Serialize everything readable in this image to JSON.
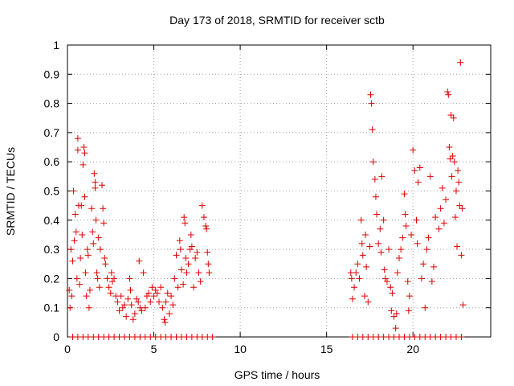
{
  "chart_data": {
    "type": "scatter",
    "title": "Day 173 of 2018, SRMTID for receiver sctb",
    "xlabel": "GPS time / hours",
    "ylabel": "SRMTID / TECUs",
    "xlim": [
      0,
      24.5
    ],
    "ylim": [
      0,
      1
    ],
    "xticks": [
      0,
      5,
      10,
      15,
      20
    ],
    "xtick_labels": [
      "0",
      "5",
      "10",
      "15",
      "20"
    ],
    "yticks": [
      0,
      0.1,
      0.2,
      0.3,
      0.4,
      0.5,
      0.6,
      0.7,
      0.8,
      0.9,
      1
    ],
    "ytick_labels": [
      "0",
      "0.1",
      "0.2",
      "0.3",
      "0.4",
      "0.5",
      "0.6",
      "0.7",
      "0.8",
      "0.9",
      "1"
    ],
    "grid": true,
    "marker": "+",
    "color": "#dd0000",
    "series": [
      {
        "name": "SRMTID",
        "points": [
          [
            0.1,
            0.16
          ],
          [
            0.15,
            0.1
          ],
          [
            0.2,
            0.3
          ],
          [
            0.25,
            0.14
          ],
          [
            0.3,
            0.26
          ],
          [
            0.35,
            0.5
          ],
          [
            0.4,
            0.33
          ],
          [
            0.45,
            0.42
          ],
          [
            0.5,
            0.36
          ],
          [
            0.55,
            0.2
          ],
          [
            0.6,
            0.68
          ],
          [
            0.6,
            0.64
          ],
          [
            0.65,
            0.45
          ],
          [
            0.7,
            0.18
          ],
          [
            0.75,
            0.27
          ],
          [
            0.8,
            0.45
          ],
          [
            0.85,
            0.35
          ],
          [
            0.9,
            0.59
          ],
          [
            0.95,
            0.65
          ],
          [
            1.0,
            0.63
          ],
          [
            1.0,
            0.48
          ],
          [
            1.05,
            0.22
          ],
          [
            1.1,
            0.14
          ],
          [
            1.15,
            0.3
          ],
          [
            1.2,
            0.28
          ],
          [
            1.25,
            0.1
          ],
          [
            1.3,
            0.16
          ],
          [
            1.4,
            0.44
          ],
          [
            1.45,
            0.36
          ],
          [
            1.5,
            0.32
          ],
          [
            1.55,
            0.56
          ],
          [
            1.6,
            0.53
          ],
          [
            1.6,
            0.51
          ],
          [
            1.65,
            0.4
          ],
          [
            1.7,
            0.22
          ],
          [
            1.75,
            0.2
          ],
          [
            1.8,
            0.34
          ],
          [
            1.85,
            0.17
          ],
          [
            1.9,
            0.3
          ],
          [
            2.0,
            0.52
          ],
          [
            2.05,
            0.44
          ],
          [
            2.1,
            0.39
          ],
          [
            2.15,
            0.27
          ],
          [
            2.2,
            0.25
          ],
          [
            2.3,
            0.2
          ],
          [
            2.4,
            0.17
          ],
          [
            2.5,
            0.15
          ],
          [
            2.55,
            0.22
          ],
          [
            2.6,
            0.19
          ],
          [
            2.7,
            0.2
          ],
          [
            2.8,
            0.14
          ],
          [
            2.9,
            0.12
          ],
          [
            3.0,
            0.09
          ],
          [
            3.1,
            0.14
          ],
          [
            3.2,
            0.1
          ],
          [
            3.3,
            0.11
          ],
          [
            3.4,
            0.07
          ],
          [
            3.5,
            0.13
          ],
          [
            3.6,
            0.2
          ],
          [
            3.65,
            0.16
          ],
          [
            3.7,
            0.11
          ],
          [
            3.8,
            0.06
          ],
          [
            3.9,
            0.08
          ],
          [
            4.0,
            0.13
          ],
          [
            4.1,
            0.12
          ],
          [
            4.15,
            0.26
          ],
          [
            4.2,
            0.1
          ],
          [
            4.3,
            0.09
          ],
          [
            4.4,
            0.22
          ],
          [
            4.5,
            0.1
          ],
          [
            4.6,
            0.14
          ],
          [
            4.7,
            0.15
          ],
          [
            4.8,
            0.12
          ],
          [
            4.9,
            0.17
          ],
          [
            5.0,
            0.14
          ],
          [
            5.1,
            0.16
          ],
          [
            5.2,
            0.15
          ],
          [
            5.3,
            0.12
          ],
          [
            5.4,
            0.17
          ],
          [
            5.5,
            0.1
          ],
          [
            5.6,
            0.06
          ],
          [
            5.65,
            0.05
          ],
          [
            5.7,
            0.12
          ],
          [
            5.8,
            0.15
          ],
          [
            5.9,
            0.08
          ],
          [
            6.0,
            0.14
          ],
          [
            6.1,
            0.11
          ],
          [
            6.2,
            0.2
          ],
          [
            6.3,
            0.28
          ],
          [
            6.4,
            0.17
          ],
          [
            6.5,
            0.33
          ],
          [
            6.55,
            0.3
          ],
          [
            6.6,
            0.23
          ],
          [
            6.7,
            0.18
          ],
          [
            6.75,
            0.41
          ],
          [
            6.8,
            0.39
          ],
          [
            6.85,
            0.27
          ],
          [
            6.9,
            0.22
          ],
          [
            7.0,
            0.25
          ],
          [
            7.1,
            0.3
          ],
          [
            7.15,
            0.35
          ],
          [
            7.2,
            0.31
          ],
          [
            7.3,
            0.17
          ],
          [
            7.4,
            0.27
          ],
          [
            7.5,
            0.29
          ],
          [
            7.6,
            0.22
          ],
          [
            7.7,
            0.19
          ],
          [
            7.8,
            0.45
          ],
          [
            7.9,
            0.41
          ],
          [
            8.0,
            0.38
          ],
          [
            8.05,
            0.37
          ],
          [
            8.1,
            0.29
          ],
          [
            8.15,
            0.25
          ],
          [
            8.2,
            0.22
          ],
          [
            16.4,
            0.22
          ],
          [
            16.45,
            0.2
          ],
          [
            16.5,
            0.13
          ],
          [
            16.6,
            0.17
          ],
          [
            16.7,
            0.22
          ],
          [
            16.8,
            0.25
          ],
          [
            16.9,
            0.2
          ],
          [
            17.0,
            0.4
          ],
          [
            17.05,
            0.32
          ],
          [
            17.1,
            0.28
          ],
          [
            17.2,
            0.14
          ],
          [
            17.25,
            0.35
          ],
          [
            17.3,
            0.24
          ],
          [
            17.4,
            0.12
          ],
          [
            17.5,
            0.31
          ],
          [
            17.55,
            0.83
          ],
          [
            17.6,
            0.8
          ],
          [
            17.65,
            0.71
          ],
          [
            17.7,
            0.6
          ],
          [
            17.8,
            0.54
          ],
          [
            17.85,
            0.48
          ],
          [
            17.9,
            0.42
          ],
          [
            18.0,
            0.32
          ],
          [
            18.1,
            0.37
          ],
          [
            18.15,
            0.29
          ],
          [
            18.2,
            0.55
          ],
          [
            18.3,
            0.4
          ],
          [
            18.35,
            0.23
          ],
          [
            18.4,
            0.2
          ],
          [
            18.5,
            0.19
          ],
          [
            18.6,
            0.3
          ],
          [
            18.7,
            0.17
          ],
          [
            18.75,
            0.09
          ],
          [
            18.8,
            0.15
          ],
          [
            18.9,
            0.07
          ],
          [
            19.0,
            0.03
          ],
          [
            19.05,
            0.08
          ],
          [
            19.1,
            0.22
          ],
          [
            19.2,
            0.27
          ],
          [
            19.3,
            0.3
          ],
          [
            19.4,
            0.34
          ],
          [
            19.5,
            0.49
          ],
          [
            19.55,
            0.42
          ],
          [
            19.6,
            0.38
          ],
          [
            19.7,
            0.19
          ],
          [
            19.75,
            0.09
          ],
          [
            19.8,
            0.14
          ],
          [
            19.9,
            0.35
          ],
          [
            20.0,
            0.64
          ],
          [
            20.1,
            0.57
          ],
          [
            20.2,
            0.4
          ],
          [
            20.25,
            0.32
          ],
          [
            20.3,
            0.53
          ],
          [
            20.4,
            0.58
          ],
          [
            20.5,
            0.2
          ],
          [
            20.6,
            0.25
          ],
          [
            20.7,
            0.1
          ],
          [
            20.8,
            0.3
          ],
          [
            20.9,
            0.34
          ],
          [
            21.0,
            0.55
          ],
          [
            21.1,
            0.19
          ],
          [
            21.2,
            0.24
          ],
          [
            21.3,
            0.41
          ],
          [
            21.5,
            0.37
          ],
          [
            21.6,
            0.44
          ],
          [
            21.7,
            0.51
          ],
          [
            21.8,
            0.39
          ],
          [
            21.9,
            0.47
          ],
          [
            22.0,
            0.84
          ],
          [
            22.05,
            0.83
          ],
          [
            22.1,
            0.65
          ],
          [
            22.15,
            0.61
          ],
          [
            22.2,
            0.76
          ],
          [
            22.25,
            0.55
          ],
          [
            22.3,
            0.62
          ],
          [
            22.35,
            0.75
          ],
          [
            22.4,
            0.6
          ],
          [
            22.45,
            0.41
          ],
          [
            22.5,
            0.5
          ],
          [
            22.55,
            0.31
          ],
          [
            22.6,
            0.57
          ],
          [
            22.65,
            0.53
          ],
          [
            22.7,
            0.45
          ],
          [
            22.75,
            0.94
          ],
          [
            22.8,
            0.28
          ],
          [
            22.85,
            0.44
          ],
          [
            22.9,
            0.11
          ],
          [
            0.3,
            0.0
          ],
          [
            0.6,
            0.0
          ],
          [
            0.9,
            0.0
          ],
          [
            1.2,
            0.0
          ],
          [
            1.5,
            0.0
          ],
          [
            1.8,
            0.0
          ],
          [
            2.1,
            0.0
          ],
          [
            2.4,
            0.0
          ],
          [
            2.7,
            0.0
          ],
          [
            3.0,
            0.0
          ],
          [
            3.3,
            0.0
          ],
          [
            3.6,
            0.0
          ],
          [
            3.9,
            0.0
          ],
          [
            4.2,
            0.0
          ],
          [
            4.5,
            0.0
          ],
          [
            4.8,
            0.0
          ],
          [
            5.1,
            0.0
          ],
          [
            5.4,
            0.0
          ],
          [
            5.7,
            0.0
          ],
          [
            6.0,
            0.0
          ],
          [
            6.3,
            0.0
          ],
          [
            6.6,
            0.0
          ],
          [
            6.9,
            0.0
          ],
          [
            7.2,
            0.0
          ],
          [
            7.5,
            0.0
          ],
          [
            7.8,
            0.0
          ],
          [
            8.1,
            0.0
          ],
          [
            8.4,
            0.0
          ],
          [
            16.5,
            0.0
          ],
          [
            16.8,
            0.0
          ],
          [
            17.1,
            0.0
          ],
          [
            17.4,
            0.0
          ],
          [
            17.7,
            0.0
          ],
          [
            18.0,
            0.0
          ],
          [
            18.3,
            0.0
          ],
          [
            18.6,
            0.0
          ],
          [
            18.9,
            0.0
          ],
          [
            19.2,
            0.0
          ],
          [
            19.5,
            0.0
          ],
          [
            19.8,
            0.0
          ],
          [
            20.1,
            0.0
          ],
          [
            20.4,
            0.0
          ],
          [
            20.7,
            0.0
          ],
          [
            21.0,
            0.0
          ],
          [
            21.3,
            0.0
          ],
          [
            21.6,
            0.0
          ],
          [
            21.9,
            0.0
          ],
          [
            22.2,
            0.0
          ],
          [
            22.5,
            0.0
          ],
          [
            22.8,
            0.0
          ]
        ]
      }
    ]
  }
}
